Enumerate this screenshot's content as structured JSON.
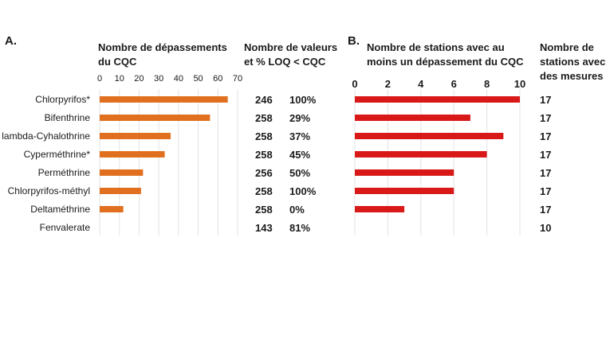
{
  "chart_data": [
    {
      "panel_label": "A.",
      "type": "bar",
      "orientation": "horizontal",
      "title_lines": [
        "Nombre de dépassements",
        "du CQC"
      ],
      "categories": [
        "Chlorpyrifos*",
        "Bifenthrine",
        "lambda-Cyhalothrine",
        "Cyperméthrine*",
        "Perméthrine",
        "Chlorpyrifos-méthyl",
        "Deltaméthrine",
        "Fenvalerate"
      ],
      "values": [
        65,
        56,
        36,
        33,
        22,
        21,
        12,
        0
      ],
      "xlim": [
        0,
        70
      ],
      "xticks": [
        "0",
        "10",
        "20",
        "30",
        "40",
        "50",
        "60",
        "70"
      ],
      "grid": true,
      "color": "#E07020",
      "table_header_lines": [
        "Nombre de valeurs",
        "et % LOQ < CQC"
      ],
      "table_counts": [
        "246",
        "258",
        "258",
        "258",
        "256",
        "258",
        "258",
        "143"
      ],
      "table_percents": [
        "100%",
        "29%",
        "37%",
        "45%",
        "50%",
        "100%",
        "0%",
        "81%"
      ]
    },
    {
      "panel_label": "B.",
      "type": "bar",
      "orientation": "horizontal",
      "title_lines": [
        "Nombre de stations avec au",
        "moins un dépassement du CQC"
      ],
      "categories": [
        "Chlorpyrifos*",
        "Bifenthrine",
        "lambda-Cyhalothrine",
        "Cyperméthrine*",
        "Perméthrine",
        "Chlorpyrifos-méthyl",
        "Deltaméthrine",
        "Fenvalerate"
      ],
      "values": [
        10,
        7,
        9,
        8,
        6,
        6,
        3,
        0
      ],
      "xlim": [
        0,
        10
      ],
      "xticks": [
        "0",
        "2",
        "4",
        "6",
        "8",
        "10"
      ],
      "grid": true,
      "color": "#D91818",
      "table_header_lines": [
        "Nombre de",
        "stations avec",
        "des mesures"
      ],
      "table_stations": [
        "17",
        "17",
        "17",
        "17",
        "17",
        "17",
        "17",
        "10"
      ]
    }
  ]
}
